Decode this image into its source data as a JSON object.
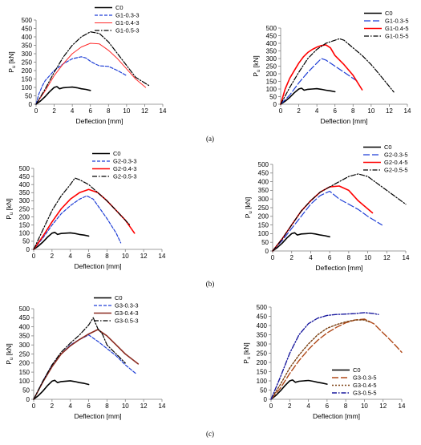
{
  "captions": [
    "(a)",
    "(b)",
    "(c)"
  ],
  "chart_data": [
    {
      "type": "line",
      "panel": "a-left",
      "xlabel": "Deflection [mm]",
      "ylabel": "Pu [kN]",
      "ylabel_main": "P",
      "ylabel_sub": "u",
      "ylabel_unit": " [kN]",
      "xlim": [
        0,
        14
      ],
      "ylim": [
        0,
        500
      ],
      "xticks": [
        0,
        2,
        4,
        6,
        8,
        10,
        12,
        14
      ],
      "yticks": [
        0,
        50,
        100,
        150,
        200,
        250,
        300,
        350,
        400,
        450,
        500
      ],
      "legend_position": "top-center",
      "series": [
        {
          "name": "C0",
          "color": "#000000",
          "dash": "solid",
          "width": 1.6,
          "x": [
            0,
            0.5,
            1,
            1.5,
            2,
            2.3,
            2.6,
            3,
            3.5,
            4,
            4.5,
            5,
            5.5,
            6
          ],
          "y": [
            0,
            20,
            45,
            75,
            100,
            105,
            92,
            98,
            100,
            102,
            98,
            92,
            88,
            82
          ]
        },
        {
          "name": "G1-0.3-3",
          "color": "#1f3fd6",
          "dash": "4,2",
          "width": 1.2,
          "x": [
            0,
            0.3,
            0.7,
            1,
            1.5,
            2,
            3,
            4,
            5,
            5.5,
            6,
            6.5,
            7,
            8,
            9,
            10
          ],
          "y": [
            0,
            60,
            110,
            140,
            170,
            200,
            240,
            270,
            282,
            275,
            255,
            240,
            228,
            225,
            200,
            170
          ]
        },
        {
          "name": "G1-0.4-3",
          "color": "#ff2a2a",
          "dash": "solid",
          "width": 1.0,
          "x": [
            0,
            1,
            2,
            3,
            4,
            5,
            6,
            7,
            8,
            9,
            10,
            11,
            12.1
          ],
          "y": [
            0,
            80,
            170,
            240,
            300,
            340,
            362,
            358,
            320,
            270,
            210,
            150,
            100
          ]
        },
        {
          "name": "G1-0.5-3",
          "color": "#000000",
          "dash": "6,2,1.5,2",
          "width": 1.2,
          "x": [
            0,
            1,
            2,
            3,
            4,
            5,
            6,
            7,
            8,
            9,
            10,
            11,
            12.5
          ],
          "y": [
            0,
            90,
            190,
            280,
            350,
            400,
            430,
            420,
            370,
            300,
            230,
            160,
            110
          ]
        }
      ]
    },
    {
      "type": "line",
      "panel": "a-right",
      "xlabel": "Deflection [mm]",
      "ylabel": "Pu [kN]",
      "ylabel_main": "P",
      "ylabel_sub": "u",
      "ylabel_unit": " [kN]",
      "xlim": [
        0,
        14
      ],
      "ylim": [
        0,
        500
      ],
      "xticks": [
        0,
        2,
        4,
        6,
        8,
        10,
        12,
        14
      ],
      "yticks": [
        0,
        50,
        100,
        150,
        200,
        250,
        300,
        350,
        400,
        450,
        500
      ],
      "legend_position": "top-right",
      "series": [
        {
          "name": "C0",
          "color": "#000000",
          "dash": "solid",
          "width": 1.6,
          "x": [
            0,
            0.5,
            1,
            1.5,
            2,
            2.3,
            2.6,
            3,
            3.5,
            4,
            4.5,
            5,
            5.5,
            6
          ],
          "y": [
            0,
            20,
            45,
            75,
            100,
            105,
            92,
            98,
            100,
            102,
            98,
            92,
            88,
            82
          ]
        },
        {
          "name": "G1-0.3-5",
          "color": "#1f3fd6",
          "dash": "8,3",
          "width": 1.2,
          "x": [
            0,
            1,
            2,
            3,
            4,
            4.5,
            5,
            6,
            7,
            8,
            8.5
          ],
          "y": [
            0,
            60,
            140,
            210,
            270,
            300,
            290,
            250,
            210,
            170,
            150
          ]
        },
        {
          "name": "G1-0.4-5",
          "color": "#ff0000",
          "dash": "solid",
          "width": 1.6,
          "x": [
            0,
            0.5,
            1,
            1.5,
            2,
            2.5,
            3,
            3.5,
            4,
            4.5,
            5,
            5.5,
            6,
            7,
            8,
            9
          ],
          "y": [
            0,
            100,
            170,
            220,
            270,
            310,
            340,
            360,
            375,
            385,
            390,
            370,
            320,
            260,
            190,
            95
          ]
        },
        {
          "name": "G1-0.5-5",
          "color": "#000000",
          "dash": "6,2,1.5,2",
          "width": 1.2,
          "x": [
            0,
            1,
            2,
            3,
            4,
            5,
            6,
            6.5,
            7,
            8,
            9,
            10,
            11,
            12.5
          ],
          "y": [
            0,
            110,
            210,
            300,
            360,
            400,
            420,
            430,
            420,
            370,
            320,
            260,
            190,
            80
          ]
        }
      ]
    },
    {
      "type": "line",
      "panel": "b-left",
      "xlabel": "Deflection [mm]",
      "ylabel": "Pu [kN]",
      "ylabel_main": "P",
      "ylabel_sub": "u",
      "ylabel_unit": " [kN]",
      "xlim": [
        0,
        14
      ],
      "ylim": [
        0,
        500
      ],
      "xticks": [
        0,
        2,
        4,
        6,
        8,
        10,
        12,
        14
      ],
      "yticks": [
        0,
        50,
        100,
        150,
        200,
        250,
        300,
        350,
        400,
        450,
        500
      ],
      "legend_position": "top-center",
      "series": [
        {
          "name": "C0",
          "color": "#000000",
          "dash": "solid",
          "width": 1.6,
          "x": [
            0,
            0.5,
            1,
            1.5,
            2,
            2.3,
            2.6,
            3,
            3.5,
            4,
            4.5,
            5,
            5.5,
            6
          ],
          "y": [
            0,
            20,
            45,
            75,
            100,
            105,
            92,
            98,
            100,
            102,
            98,
            92,
            88,
            82
          ]
        },
        {
          "name": "G2-0.3-3",
          "color": "#1f3fd6",
          "dash": "4,2",
          "width": 1.2,
          "x": [
            0,
            1,
            2,
            3,
            4,
            5,
            5.8,
            6.5,
            7,
            8,
            9,
            9.5
          ],
          "y": [
            0,
            70,
            150,
            220,
            270,
            310,
            330,
            310,
            270,
            190,
            100,
            40
          ]
        },
        {
          "name": "G2-0.4-3",
          "color": "#ff0000",
          "dash": "solid",
          "width": 1.6,
          "x": [
            0,
            1,
            2,
            3,
            4,
            5,
            6,
            7,
            8,
            9,
            10,
            11
          ],
          "y": [
            0,
            80,
            170,
            250,
            310,
            350,
            370,
            350,
            300,
            240,
            180,
            100
          ]
        },
        {
          "name": "G2-0.5-3",
          "color": "#000000",
          "dash": "6,2,1.5,2",
          "width": 1.2,
          "x": [
            0,
            1,
            2,
            3,
            4,
            4.5,
            5,
            6,
            7,
            8,
            9,
            10,
            10.5
          ],
          "y": [
            0,
            120,
            240,
            330,
            400,
            440,
            430,
            400,
            350,
            300,
            240,
            180,
            150
          ]
        }
      ]
    },
    {
      "type": "line",
      "panel": "b-right",
      "xlabel": "Deflection [mm]",
      "ylabel": "Pu [kN]",
      "ylabel_main": "P",
      "ylabel_sub": "u",
      "ylabel_unit": " [kN]",
      "xlim": [
        0,
        14
      ],
      "ylim": [
        0,
        500
      ],
      "xticks": [
        0,
        2,
        4,
        6,
        8,
        10,
        12,
        14
      ],
      "yticks": [
        0,
        50,
        100,
        150,
        200,
        250,
        300,
        350,
        400,
        450,
        500
      ],
      "legend_position": "top-right",
      "series": [
        {
          "name": "C0",
          "color": "#000000",
          "dash": "solid",
          "width": 1.6,
          "x": [
            0,
            0.5,
            1,
            1.5,
            2,
            2.3,
            2.6,
            3,
            3.5,
            4,
            4.5,
            5,
            5.5,
            6
          ],
          "y": [
            0,
            20,
            45,
            75,
            100,
            105,
            92,
            98,
            100,
            102,
            98,
            92,
            88,
            82
          ]
        },
        {
          "name": "G2-0.3-5",
          "color": "#1f3fd6",
          "dash": "8,3",
          "width": 1.2,
          "x": [
            0,
            1,
            2,
            3,
            4,
            5,
            6,
            7,
            8,
            9,
            10,
            11.5
          ],
          "y": [
            0,
            60,
            130,
            200,
            270,
            320,
            345,
            300,
            270,
            240,
            200,
            150
          ]
        },
        {
          "name": "G2-0.4-5",
          "color": "#ff0000",
          "dash": "solid",
          "width": 1.6,
          "x": [
            0,
            1,
            2,
            3,
            4,
            5,
            6,
            7,
            8,
            9,
            10.5
          ],
          "y": [
            0,
            70,
            150,
            230,
            290,
            340,
            370,
            375,
            350,
            290,
            220
          ]
        },
        {
          "name": "G2-0.5-5",
          "color": "#000000",
          "dash": "6,2,1.5,2",
          "width": 1.2,
          "x": [
            0,
            1,
            2,
            3,
            4,
            5,
            6,
            7,
            8,
            9,
            10,
            12,
            14
          ],
          "y": [
            0,
            70,
            150,
            230,
            290,
            340,
            370,
            400,
            430,
            445,
            430,
            350,
            270
          ]
        }
      ]
    },
    {
      "type": "line",
      "panel": "c-left",
      "xlabel": "Deflection [mm]",
      "ylabel": "Pu [kN]",
      "ylabel_main": "P",
      "ylabel_sub": "u",
      "ylabel_unit": " [kN]",
      "xlim": [
        0,
        14
      ],
      "ylim": [
        0,
        500
      ],
      "xticks": [
        0,
        2,
        4,
        6,
        8,
        10,
        12,
        14
      ],
      "yticks": [
        0,
        50,
        100,
        150,
        200,
        250,
        300,
        350,
        400,
        450,
        500
      ],
      "legend_position": "top-center",
      "series": [
        {
          "name": "C0",
          "color": "#000000",
          "dash": "solid",
          "width": 1.6,
          "x": [
            0,
            0.5,
            1,
            1.5,
            2,
            2.3,
            2.6,
            3,
            3.5,
            4,
            4.5,
            5,
            5.5,
            6
          ],
          "y": [
            0,
            20,
            45,
            75,
            100,
            105,
            92,
            98,
            100,
            102,
            98,
            92,
            88,
            82
          ]
        },
        {
          "name": "G3-0.3-3",
          "color": "#1f3fd6",
          "dash": "4,2",
          "width": 1.2,
          "x": [
            0,
            1,
            2,
            3,
            4,
            5,
            6,
            7,
            8,
            9,
            10,
            11.2
          ],
          "y": [
            0,
            100,
            190,
            250,
            300,
            330,
            355,
            320,
            280,
            240,
            190,
            140
          ]
        },
        {
          "name": "G3-0.4-3",
          "color": "#8b2a1f",
          "dash": "solid",
          "width": 1.6,
          "x": [
            0,
            1,
            2,
            3,
            4,
            5,
            6,
            7,
            8,
            9,
            10,
            11.4
          ],
          "y": [
            0,
            95,
            180,
            250,
            295,
            330,
            360,
            385,
            350,
            300,
            250,
            195
          ]
        },
        {
          "name": "G3-0.5-3",
          "color": "#000000",
          "dash": "6,2,1.5,2",
          "width": 1.2,
          "x": [
            0,
            1,
            2,
            3,
            4,
            5,
            6,
            6.5,
            7,
            7.5,
            8,
            9,
            10
          ],
          "y": [
            0,
            100,
            190,
            260,
            310,
            355,
            410,
            450,
            390,
            360,
            300,
            250,
            200
          ]
        }
      ]
    },
    {
      "type": "line",
      "panel": "c-right",
      "xlabel": "Deflection [mm]",
      "ylabel": "Pu [kN]",
      "ylabel_main": "P",
      "ylabel_sub": "u",
      "ylabel_unit": " [kN]",
      "xlim": [
        0,
        14
      ],
      "ylim": [
        0,
        500
      ],
      "xticks": [
        0,
        2,
        4,
        6,
        8,
        10,
        12,
        14
      ],
      "yticks": [
        0,
        50,
        100,
        150,
        200,
        250,
        300,
        350,
        400,
        450,
        500
      ],
      "legend_position": "bottom-right",
      "series": [
        {
          "name": "C0",
          "color": "#000000",
          "dash": "solid",
          "width": 1.6,
          "x": [
            0,
            0.5,
            1,
            1.5,
            2,
            2.3,
            2.6,
            3,
            3.5,
            4,
            4.5,
            5,
            5.5,
            6
          ],
          "y": [
            0,
            20,
            45,
            75,
            100,
            105,
            92,
            98,
            100,
            102,
            98,
            92,
            88,
            82
          ]
        },
        {
          "name": "G3-0.3-5",
          "color": "#b04a1a",
          "dash": "8,3",
          "width": 1.4,
          "x": [
            0,
            1,
            2,
            3,
            4,
            5,
            6,
            7,
            8,
            9,
            10,
            11,
            12,
            13,
            14
          ],
          "y": [
            0,
            60,
            140,
            210,
            270,
            320,
            360,
            390,
            415,
            430,
            435,
            410,
            360,
            310,
            255
          ]
        },
        {
          "name": "G3-0.4-5",
          "color": "#7a3f10",
          "dash": "2,2",
          "width": 1.4,
          "x": [
            0,
            1,
            2,
            3,
            4,
            5,
            6,
            7,
            8,
            9,
            10,
            10.5
          ],
          "y": [
            0,
            80,
            170,
            240,
            300,
            350,
            385,
            405,
            420,
            430,
            430,
            420
          ]
        },
        {
          "name": "G3-0.5-5",
          "color": "#1a1a9e",
          "dash": "6,2,1.5,2",
          "width": 1.4,
          "x": [
            0,
            1,
            2,
            3,
            4,
            5,
            6,
            7,
            8,
            9,
            10,
            11,
            11.5
          ],
          "y": [
            0,
            120,
            250,
            350,
            410,
            440,
            455,
            460,
            462,
            465,
            470,
            465,
            460
          ]
        }
      ]
    }
  ]
}
